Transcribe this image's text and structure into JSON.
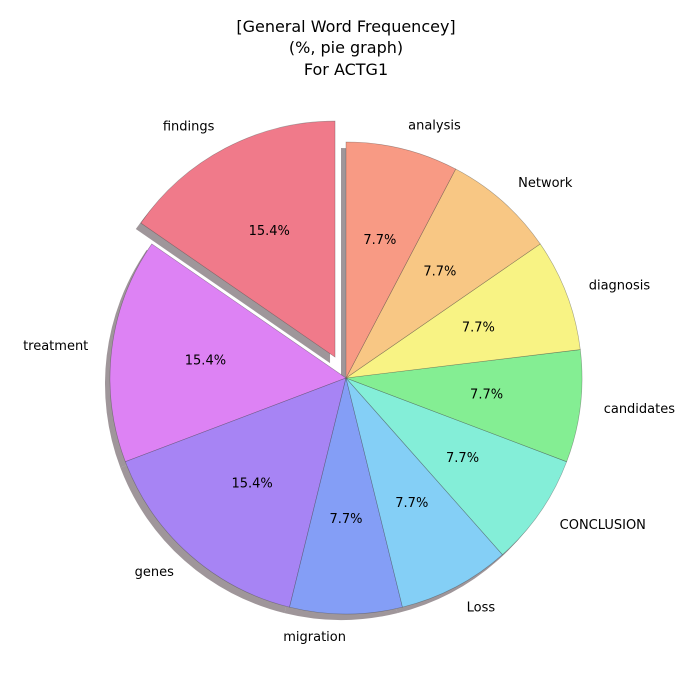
{
  "chart_data": {
    "type": "pie",
    "title_lines": [
      "[General Word Frequencey]",
      "(%, pie graph)",
      "For ACTG1"
    ],
    "start_angle_deg": 90,
    "direction": "counterclockwise",
    "shadow": true,
    "slices": [
      {
        "label": "findings",
        "value": 15.4,
        "pct_text": "15.4%",
        "color": "#F07A8A",
        "exploded": true
      },
      {
        "label": "treatment",
        "value": 15.4,
        "pct_text": "15.4%",
        "color": "#DD82F4",
        "exploded": false
      },
      {
        "label": "genes",
        "value": 15.4,
        "pct_text": "15.4%",
        "color": "#A784F4",
        "exploded": false
      },
      {
        "label": "migration",
        "value": 7.7,
        "pct_text": "7.7%",
        "color": "#849EF6",
        "exploded": false
      },
      {
        "label": "Loss",
        "value": 7.7,
        "pct_text": "7.7%",
        "color": "#84CFF6",
        "exploded": false
      },
      {
        "label": "CONCLUSION",
        "value": 7.7,
        "pct_text": "7.7%",
        "color": "#84EED8",
        "exploded": false
      },
      {
        "label": "candidates",
        "value": 7.7,
        "pct_text": "7.7%",
        "color": "#84EE93",
        "exploded": false
      },
      {
        "label": "diagnosis",
        "value": 7.7,
        "pct_text": "7.7%",
        "color": "#F8F384",
        "exploded": false
      },
      {
        "label": "Network",
        "value": 7.7,
        "pct_text": "7.7%",
        "color": "#F8C784",
        "exploded": false
      },
      {
        "label": "analysis",
        "value": 7.7,
        "pct_text": "7.7%",
        "color": "#F89A84",
        "exploded": false
      }
    ]
  }
}
